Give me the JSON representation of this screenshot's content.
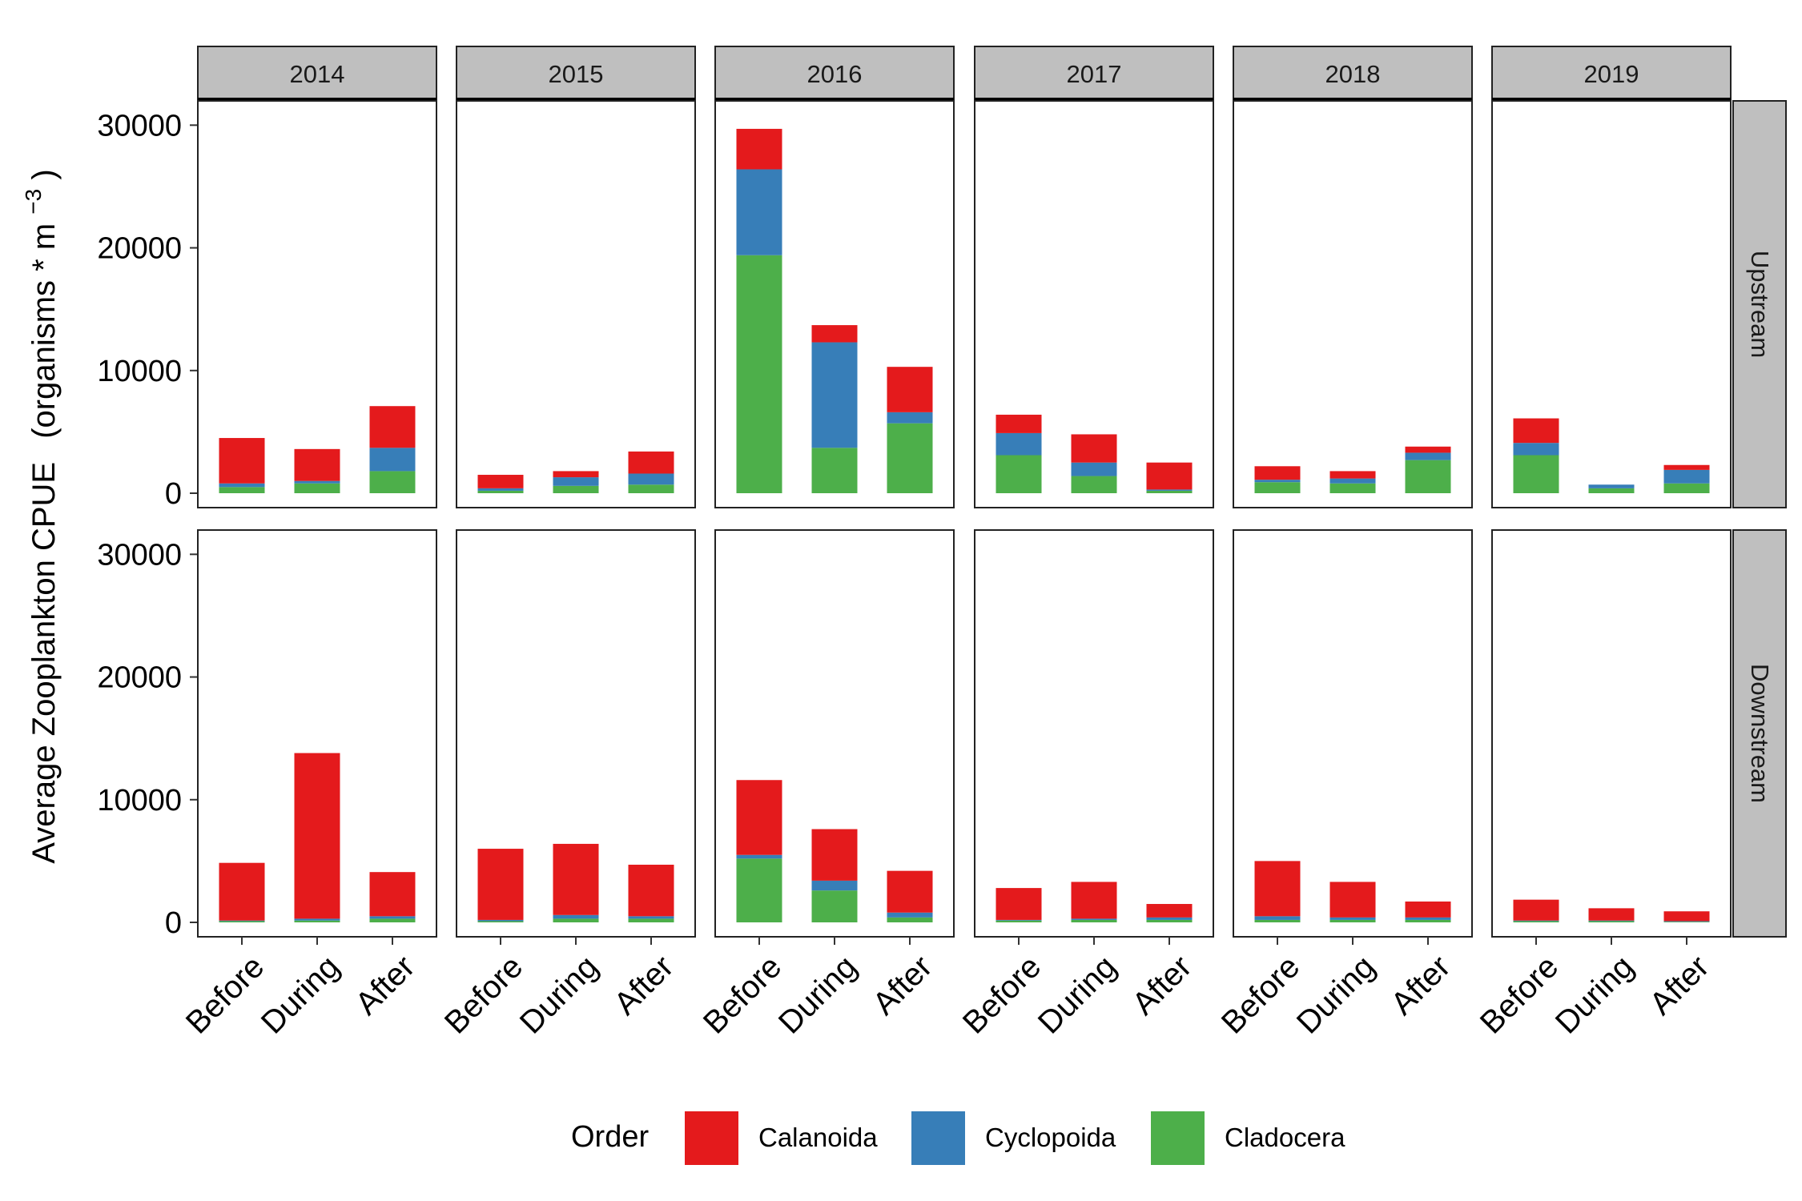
{
  "chart_data": {
    "type": "bar",
    "stacked": true,
    "facet_columns": [
      "2014",
      "2015",
      "2016",
      "2017",
      "2018",
      "2019"
    ],
    "facet_rows": [
      "Upstream",
      "Downstream"
    ],
    "categories": [
      "Before",
      "During",
      "After"
    ],
    "ylim": [
      0,
      31000
    ],
    "y_ticks": [
      "0",
      "10000",
      "20000",
      "30000"
    ],
    "y_tick_values": [
      0,
      10000,
      20000,
      30000
    ],
    "ylabel": "Average Zooplankton CPUE",
    "ylabel_units_prefix": "(organisms * m",
    "ylabel_units_exp": "−3",
    "ylabel_units_suffix": ")",
    "xlabel": "",
    "legend": {
      "title": "Order",
      "placement": "bottom",
      "entries": [
        {
          "name": "Calanoida",
          "color": "#E41A1C"
        },
        {
          "name": "Cyclopoida",
          "color": "#377EB8"
        },
        {
          "name": "Cladocera",
          "color": "#4DAF4A"
        }
      ]
    },
    "stack_order_bottom_to_top": [
      "Cladocera",
      "Cyclopoida",
      "Calanoida"
    ],
    "panels": [
      {
        "year": "2014",
        "location": "Upstream",
        "series": [
          {
            "name": "Cladocera",
            "values": [
              500,
              800,
              1800
            ]
          },
          {
            "name": "Cyclopoida",
            "values": [
              300,
              200,
              1900
            ]
          },
          {
            "name": "Calanoida",
            "values": [
              3700,
              2600,
              3400
            ]
          }
        ]
      },
      {
        "year": "2015",
        "location": "Upstream",
        "series": [
          {
            "name": "Cladocera",
            "values": [
              200,
              600,
              700
            ]
          },
          {
            "name": "Cyclopoida",
            "values": [
              200,
              700,
              900
            ]
          },
          {
            "name": "Calanoida",
            "values": [
              1100,
              500,
              1800
            ]
          }
        ]
      },
      {
        "year": "2016",
        "location": "Upstream",
        "series": [
          {
            "name": "Cladocera",
            "values": [
              19400,
              3700,
              5700
            ]
          },
          {
            "name": "Cyclopoida",
            "values": [
              7000,
              8600,
              900
            ]
          },
          {
            "name": "Calanoida",
            "values": [
              3300,
              1400,
              3700
            ]
          }
        ]
      },
      {
        "year": "2017",
        "location": "Upstream",
        "series": [
          {
            "name": "Cladocera",
            "values": [
              3100,
              1400,
              200
            ]
          },
          {
            "name": "Cyclopoida",
            "values": [
              1800,
              1100,
              100
            ]
          },
          {
            "name": "Calanoida",
            "values": [
              1500,
              2300,
              2200
            ]
          }
        ]
      },
      {
        "year": "2018",
        "location": "Upstream",
        "series": [
          {
            "name": "Cladocera",
            "values": [
              900,
              800,
              2700
            ]
          },
          {
            "name": "Cyclopoida",
            "values": [
              200,
              400,
              600
            ]
          },
          {
            "name": "Calanoida",
            "values": [
              1100,
              600,
              500
            ]
          }
        ]
      },
      {
        "year": "2019",
        "location": "Upstream",
        "series": [
          {
            "name": "Cladocera",
            "values": [
              3100,
              400,
              800
            ]
          },
          {
            "name": "Cyclopoida",
            "values": [
              1000,
              300,
              1100
            ]
          },
          {
            "name": "Calanoida",
            "values": [
              2000,
              0,
              400
            ]
          }
        ]
      },
      {
        "year": "2014",
        "location": "Downstream",
        "series": [
          {
            "name": "Cladocera",
            "values": [
              100,
              150,
              300
            ]
          },
          {
            "name": "Cyclopoida",
            "values": [
              50,
              150,
              200
            ]
          },
          {
            "name": "Calanoida",
            "values": [
              4700,
              13500,
              3600
            ]
          }
        ]
      },
      {
        "year": "2015",
        "location": "Downstream",
        "series": [
          {
            "name": "Cladocera",
            "values": [
              100,
              300,
              300
            ]
          },
          {
            "name": "Cyclopoida",
            "values": [
              100,
              300,
              200
            ]
          },
          {
            "name": "Calanoida",
            "values": [
              5800,
              5800,
              4200
            ]
          }
        ]
      },
      {
        "year": "2016",
        "location": "Downstream",
        "series": [
          {
            "name": "Cladocera",
            "values": [
              5200,
              2600,
              400
            ]
          },
          {
            "name": "Cyclopoida",
            "values": [
              300,
              800,
              400
            ]
          },
          {
            "name": "Calanoida",
            "values": [
              6100,
              4200,
              3400
            ]
          }
        ]
      },
      {
        "year": "2017",
        "location": "Downstream",
        "series": [
          {
            "name": "Cladocera",
            "values": [
              150,
              200,
              200
            ]
          },
          {
            "name": "Cyclopoida",
            "values": [
              50,
              100,
              200
            ]
          },
          {
            "name": "Calanoida",
            "values": [
              2600,
              3000,
              1100
            ]
          }
        ]
      },
      {
        "year": "2018",
        "location": "Downstream",
        "series": [
          {
            "name": "Cladocera",
            "values": [
              200,
              200,
              200
            ]
          },
          {
            "name": "Cyclopoida",
            "values": [
              300,
              200,
              200
            ]
          },
          {
            "name": "Calanoida",
            "values": [
              4500,
              2900,
              1300
            ]
          }
        ]
      },
      {
        "year": "2019",
        "location": "Downstream",
        "series": [
          {
            "name": "Cladocera",
            "values": [
              100,
              100,
              50
            ]
          },
          {
            "name": "Cyclopoida",
            "values": [
              50,
              50,
              50
            ]
          },
          {
            "name": "Calanoida",
            "values": [
              1700,
              1000,
              800
            ]
          }
        ]
      }
    ]
  }
}
